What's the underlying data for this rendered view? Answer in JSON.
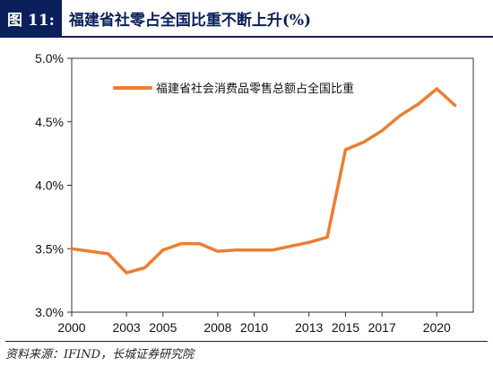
{
  "header": {
    "figure_label": "图 11:",
    "title": "福建省社零占全国比重不断上升(%)"
  },
  "source": "资料来源：IFIND，长城证券研究院",
  "colors": {
    "line": "#ed7d31",
    "brand": "#0a1f5c"
  },
  "chart_data": {
    "type": "line",
    "title": "",
    "xlabel": "",
    "ylabel": "",
    "xlim": [
      2000,
      2022
    ],
    "ylim": [
      3.0,
      5.0
    ],
    "x_ticks": [
      2000,
      2003,
      2005,
      2008,
      2010,
      2013,
      2015,
      2017,
      2020
    ],
    "x_tick_labels": [
      "2000",
      "2003",
      "2005",
      "2008",
      "2010",
      "2013",
      "2015",
      "2017",
      "2020"
    ],
    "y_ticks": [
      3.0,
      3.5,
      4.0,
      4.5,
      5.0
    ],
    "y_tick_labels": [
      "3.0%",
      "3.5%",
      "4.0%",
      "4.5%",
      "5.0%"
    ],
    "legend_position": "top",
    "grid": false,
    "series": [
      {
        "name": "福建省社会消费品零售总额占全国比重",
        "x": [
          2000,
          2001,
          2002,
          2003,
          2004,
          2005,
          2006,
          2007,
          2008,
          2009,
          2010,
          2011,
          2012,
          2013,
          2014,
          2015,
          2016,
          2017,
          2018,
          2019,
          2020,
          2021
        ],
        "y": [
          3.5,
          3.48,
          3.46,
          3.31,
          3.35,
          3.49,
          3.54,
          3.54,
          3.48,
          3.49,
          3.49,
          3.49,
          3.52,
          3.55,
          3.59,
          4.28,
          4.34,
          4.43,
          4.55,
          4.64,
          4.76,
          4.63
        ]
      }
    ]
  }
}
